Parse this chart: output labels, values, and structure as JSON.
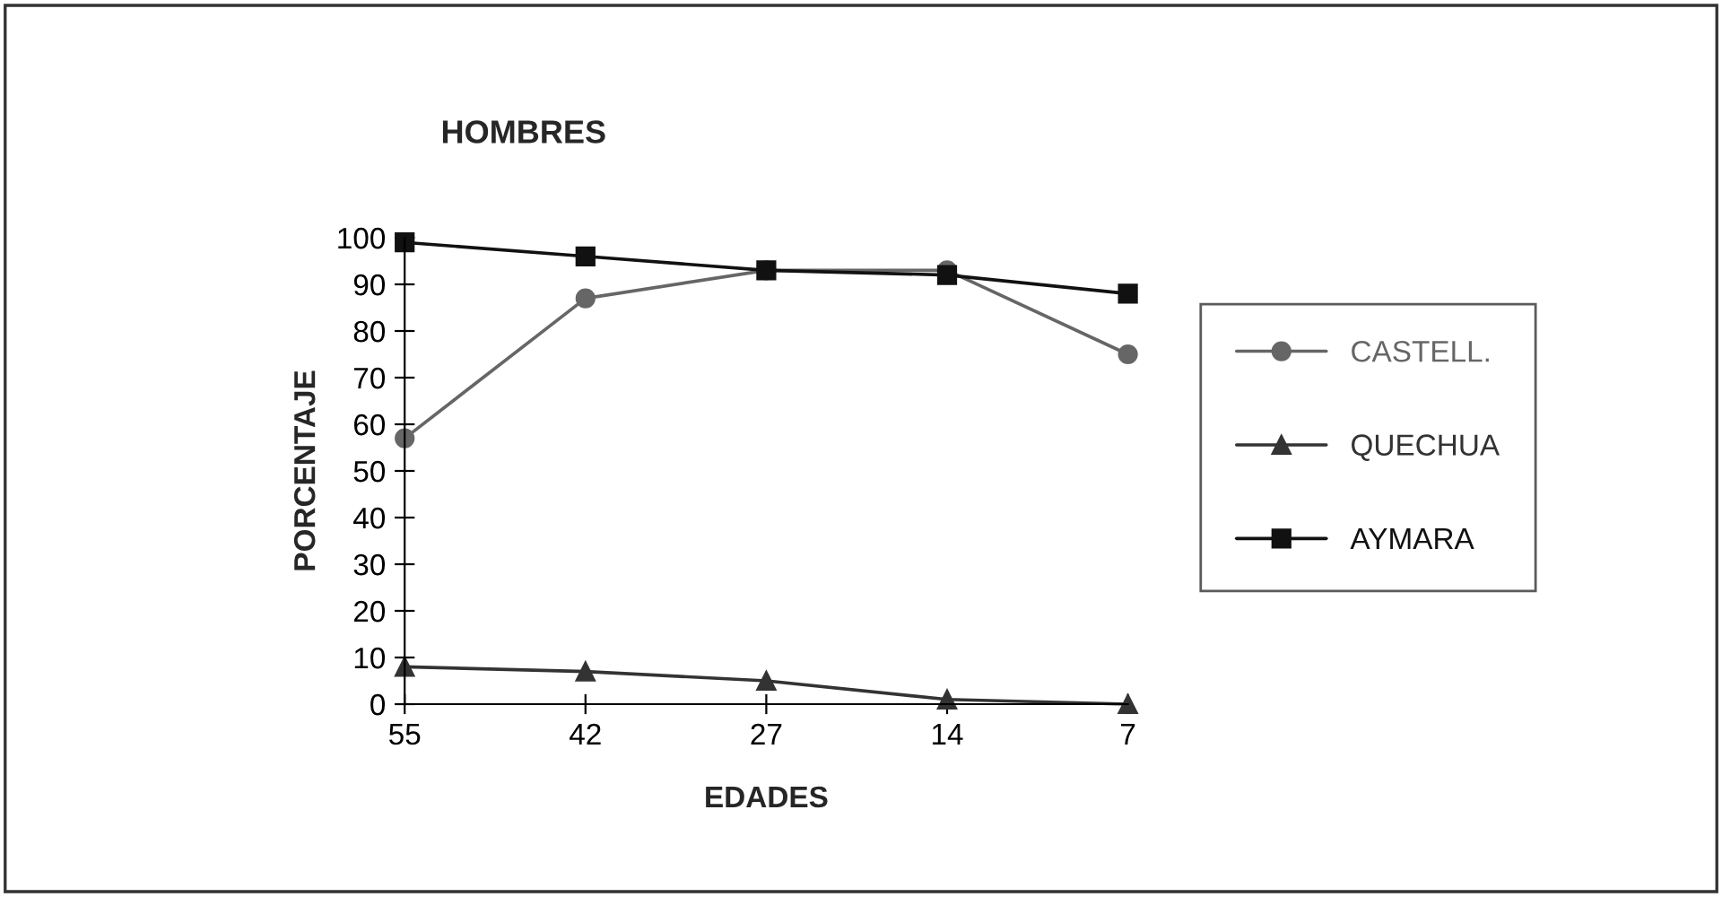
{
  "chart_data": {
    "type": "line",
    "title": "HOMBRES",
    "xlabel": "EDADES",
    "ylabel": "PORCENTAJE",
    "categories": [
      "55",
      "42",
      "27",
      "14",
      "7"
    ],
    "series": [
      {
        "name": "CASTELL.",
        "color": "#666666",
        "marker": "circle",
        "values": [
          57,
          87,
          93,
          93,
          75
        ]
      },
      {
        "name": "QUECHUA",
        "color": "#333333",
        "marker": "triangle",
        "values": [
          8,
          7,
          5,
          1,
          0
        ]
      },
      {
        "name": "AYMARA",
        "color": "#111111",
        "marker": "square",
        "values": [
          99,
          96,
          93,
          92,
          88
        ]
      }
    ],
    "ylim": [
      0,
      100
    ],
    "yticks": [
      0,
      10,
      20,
      30,
      40,
      50,
      60,
      70,
      80,
      90,
      100
    ],
    "grid": false,
    "legend": "right"
  }
}
